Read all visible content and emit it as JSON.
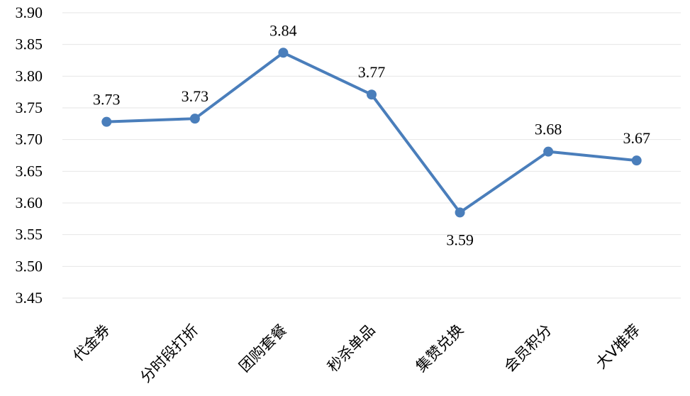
{
  "chart_data": {
    "type": "line",
    "categories": [
      "代金券",
      "分时段打折",
      "团购套餐",
      "秒杀单品",
      "集赞兑换",
      "会员积分",
      "大V推荐"
    ],
    "series": [
      {
        "values": [
          3.728,
          3.733,
          3.837,
          3.771,
          3.585,
          3.681,
          3.667
        ],
        "labels": [
          "3.73",
          "3.73",
          "3.84",
          "3.77",
          "3.59",
          "3.68",
          "3.67"
        ]
      }
    ],
    "label_positions": [
      "above",
      "above",
      "above",
      "above",
      "below",
      "above",
      "above"
    ],
    "ylim": [
      3.45,
      3.9
    ],
    "yticks": [
      "3.45",
      "3.50",
      "3.55",
      "3.60",
      "3.65",
      "3.70",
      "3.75",
      "3.80",
      "3.85",
      "3.90"
    ],
    "grid": true,
    "xlabel_rotation": "-45deg",
    "colors": {
      "line": "#4a7ebb",
      "grid": "#e6e6e6"
    }
  }
}
